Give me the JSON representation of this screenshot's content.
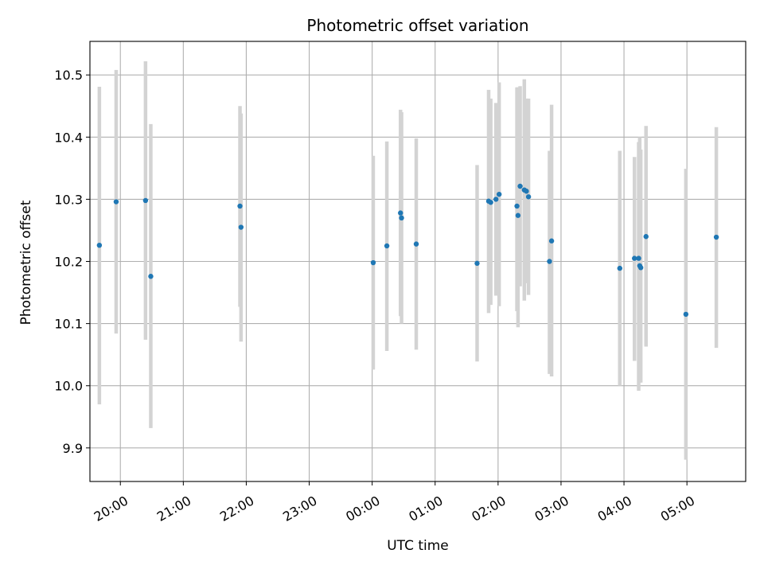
{
  "chart_data": {
    "type": "scatter",
    "title": "Photometric offset variation",
    "xlabel": "UTC time",
    "ylabel": "Photometric offset",
    "x_is_time": true,
    "xlim": [
      "19:31",
      "05:56"
    ],
    "ylim": [
      9.846,
      10.554
    ],
    "x_tick_labels": [
      "20:00",
      "21:00",
      "22:00",
      "23:00",
      "00:00",
      "01:00",
      "02:00",
      "03:00",
      "04:00",
      "05:00"
    ],
    "y_ticks": [
      9.9,
      10.0,
      10.1,
      10.2,
      10.3,
      10.4,
      10.5
    ],
    "y_tick_labels": [
      "9.9",
      "10.0",
      "10.1",
      "10.2",
      "10.3",
      "10.4",
      "10.5"
    ],
    "grid": true,
    "colors": {
      "point": "#1f77b4",
      "errorbar": "#d3d3d3",
      "grid": "#b0b0b0"
    },
    "points": [
      {
        "time": "19:40",
        "y": 10.226,
        "lo": 9.97,
        "hi": 10.481
      },
      {
        "time": "19:56",
        "y": 10.296,
        "lo": 10.084,
        "hi": 10.508
      },
      {
        "time": "20:24",
        "y": 10.298,
        "lo": 10.074,
        "hi": 10.522
      },
      {
        "time": "20:29",
        "y": 10.176,
        "lo": 9.932,
        "hi": 10.421
      },
      {
        "time": "21:54",
        "y": 10.289,
        "lo": 10.127,
        "hi": 10.45
      },
      {
        "time": "21:55",
        "y": 10.255,
        "lo": 10.071,
        "hi": 10.438
      },
      {
        "time": "00:01",
        "y": 10.198,
        "lo": 10.026,
        "hi": 10.37
      },
      {
        "time": "00:14",
        "y": 10.225,
        "lo": 10.056,
        "hi": 10.393
      },
      {
        "time": "00:27",
        "y": 10.278,
        "lo": 10.112,
        "hi": 10.444
      },
      {
        "time": "00:28",
        "y": 10.27,
        "lo": 10.1,
        "hi": 10.44
      },
      {
        "time": "00:42",
        "y": 10.228,
        "lo": 10.058,
        "hi": 10.398
      },
      {
        "time": "01:40",
        "y": 10.197,
        "lo": 10.039,
        "hi": 10.355
      },
      {
        "time": "01:51",
        "y": 10.297,
        "lo": 10.117,
        "hi": 10.476
      },
      {
        "time": "01:53",
        "y": 10.295,
        "lo": 10.13,
        "hi": 10.462
      },
      {
        "time": "01:58",
        "y": 10.3,
        "lo": 10.145,
        "hi": 10.455
      },
      {
        "time": "02:01",
        "y": 10.308,
        "lo": 10.128,
        "hi": 10.488
      },
      {
        "time": "02:18",
        "y": 10.289,
        "lo": 10.12,
        "hi": 10.48
      },
      {
        "time": "02:19",
        "y": 10.274,
        "lo": 10.094,
        "hi": 10.48
      },
      {
        "time": "02:21",
        "y": 10.321,
        "lo": 10.16,
        "hi": 10.482
      },
      {
        "time": "02:25",
        "y": 10.315,
        "lo": 10.137,
        "hi": 10.493
      },
      {
        "time": "02:27",
        "y": 10.313,
        "lo": 10.165,
        "hi": 10.462
      },
      {
        "time": "02:29",
        "y": 10.304,
        "lo": 10.146,
        "hi": 10.462
      },
      {
        "time": "02:49",
        "y": 10.2,
        "lo": 10.019,
        "hi": 10.378
      },
      {
        "time": "02:51",
        "y": 10.233,
        "lo": 10.015,
        "hi": 10.452
      },
      {
        "time": "03:56",
        "y": 10.189,
        "lo": 10.0,
        "hi": 10.378
      },
      {
        "time": "04:10",
        "y": 10.205,
        "lo": 10.04,
        "hi": 10.368
      },
      {
        "time": "04:14",
        "y": 10.205,
        "lo": 9.992,
        "hi": 10.392
      },
      {
        "time": "04:15",
        "y": 10.193,
        "lo": 10.005,
        "hi": 10.4
      },
      {
        "time": "04:16",
        "y": 10.19,
        "lo": 10.005,
        "hi": 10.38
      },
      {
        "time": "04:21",
        "y": 10.24,
        "lo": 10.063,
        "hi": 10.418
      },
      {
        "time": "04:59",
        "y": 10.115,
        "lo": 9.881,
        "hi": 10.349
      },
      {
        "time": "05:28",
        "y": 10.239,
        "lo": 10.061,
        "hi": 10.416
      }
    ]
  }
}
